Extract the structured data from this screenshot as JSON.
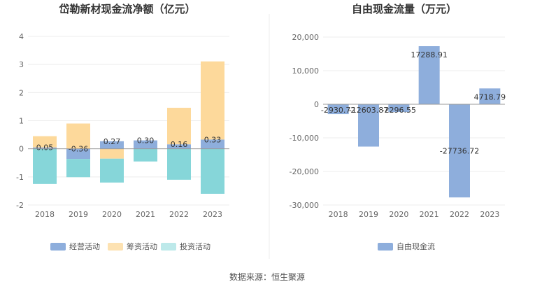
{
  "chart_data": [
    {
      "type": "bar",
      "stacked": true,
      "title": "岱勒新材现金流净额（亿元）",
      "categories": [
        "2018",
        "2019",
        "2020",
        "2021",
        "2022",
        "2023"
      ],
      "ylim": [
        -2,
        4
      ],
      "yticks": [
        4,
        3,
        2,
        1,
        0,
        -1,
        -2
      ],
      "grid": true,
      "legend_position": "bottom",
      "series": [
        {
          "name": "经营活动",
          "color": "#8eaedc",
          "values": [
            0.05,
            -0.36,
            0.27,
            0.3,
            0.16,
            0.33
          ]
        },
        {
          "name": "筹资活动",
          "color": "#fdd99b",
          "values": [
            0.4,
            0.9,
            -0.35,
            0.0,
            1.3,
            2.78
          ]
        },
        {
          "name": "投资活动",
          "color": "#86d6d9",
          "values": [
            -1.25,
            -0.65,
            -0.85,
            -0.45,
            -1.1,
            -1.6
          ]
        }
      ],
      "data_labels": [
        "0.05",
        "-0.36",
        "0.27",
        "0.30",
        "0.16",
        "0.33"
      ]
    },
    {
      "type": "bar",
      "waterfall": true,
      "title": "自由现金流量（万元）",
      "categories": [
        "2018",
        "2019",
        "2020",
        "2021",
        "2022",
        "2023"
      ],
      "ylim": [
        -30000,
        20000
      ],
      "yticks": [
        "20,000",
        "10,000",
        "0",
        "-10,000",
        "-20,000",
        "-30,000"
      ],
      "ytick_values": [
        20000,
        10000,
        0,
        -10000,
        -20000,
        -30000
      ],
      "grid": true,
      "legend_position": "bottom",
      "series": [
        {
          "name": "自由现金流",
          "color": "#8eaedc",
          "values": [
            -2930.72,
            -12603.87,
            -2296.55,
            17288.91,
            -27736.72,
            4718.79
          ]
        }
      ],
      "data_labels": [
        "-2930.72",
        "-12603.87",
        "-2296.55",
        "17288.91",
        "-27736.72",
        "4718.79"
      ]
    }
  ],
  "footer": {
    "source": "数据来源：恒生聚源"
  }
}
